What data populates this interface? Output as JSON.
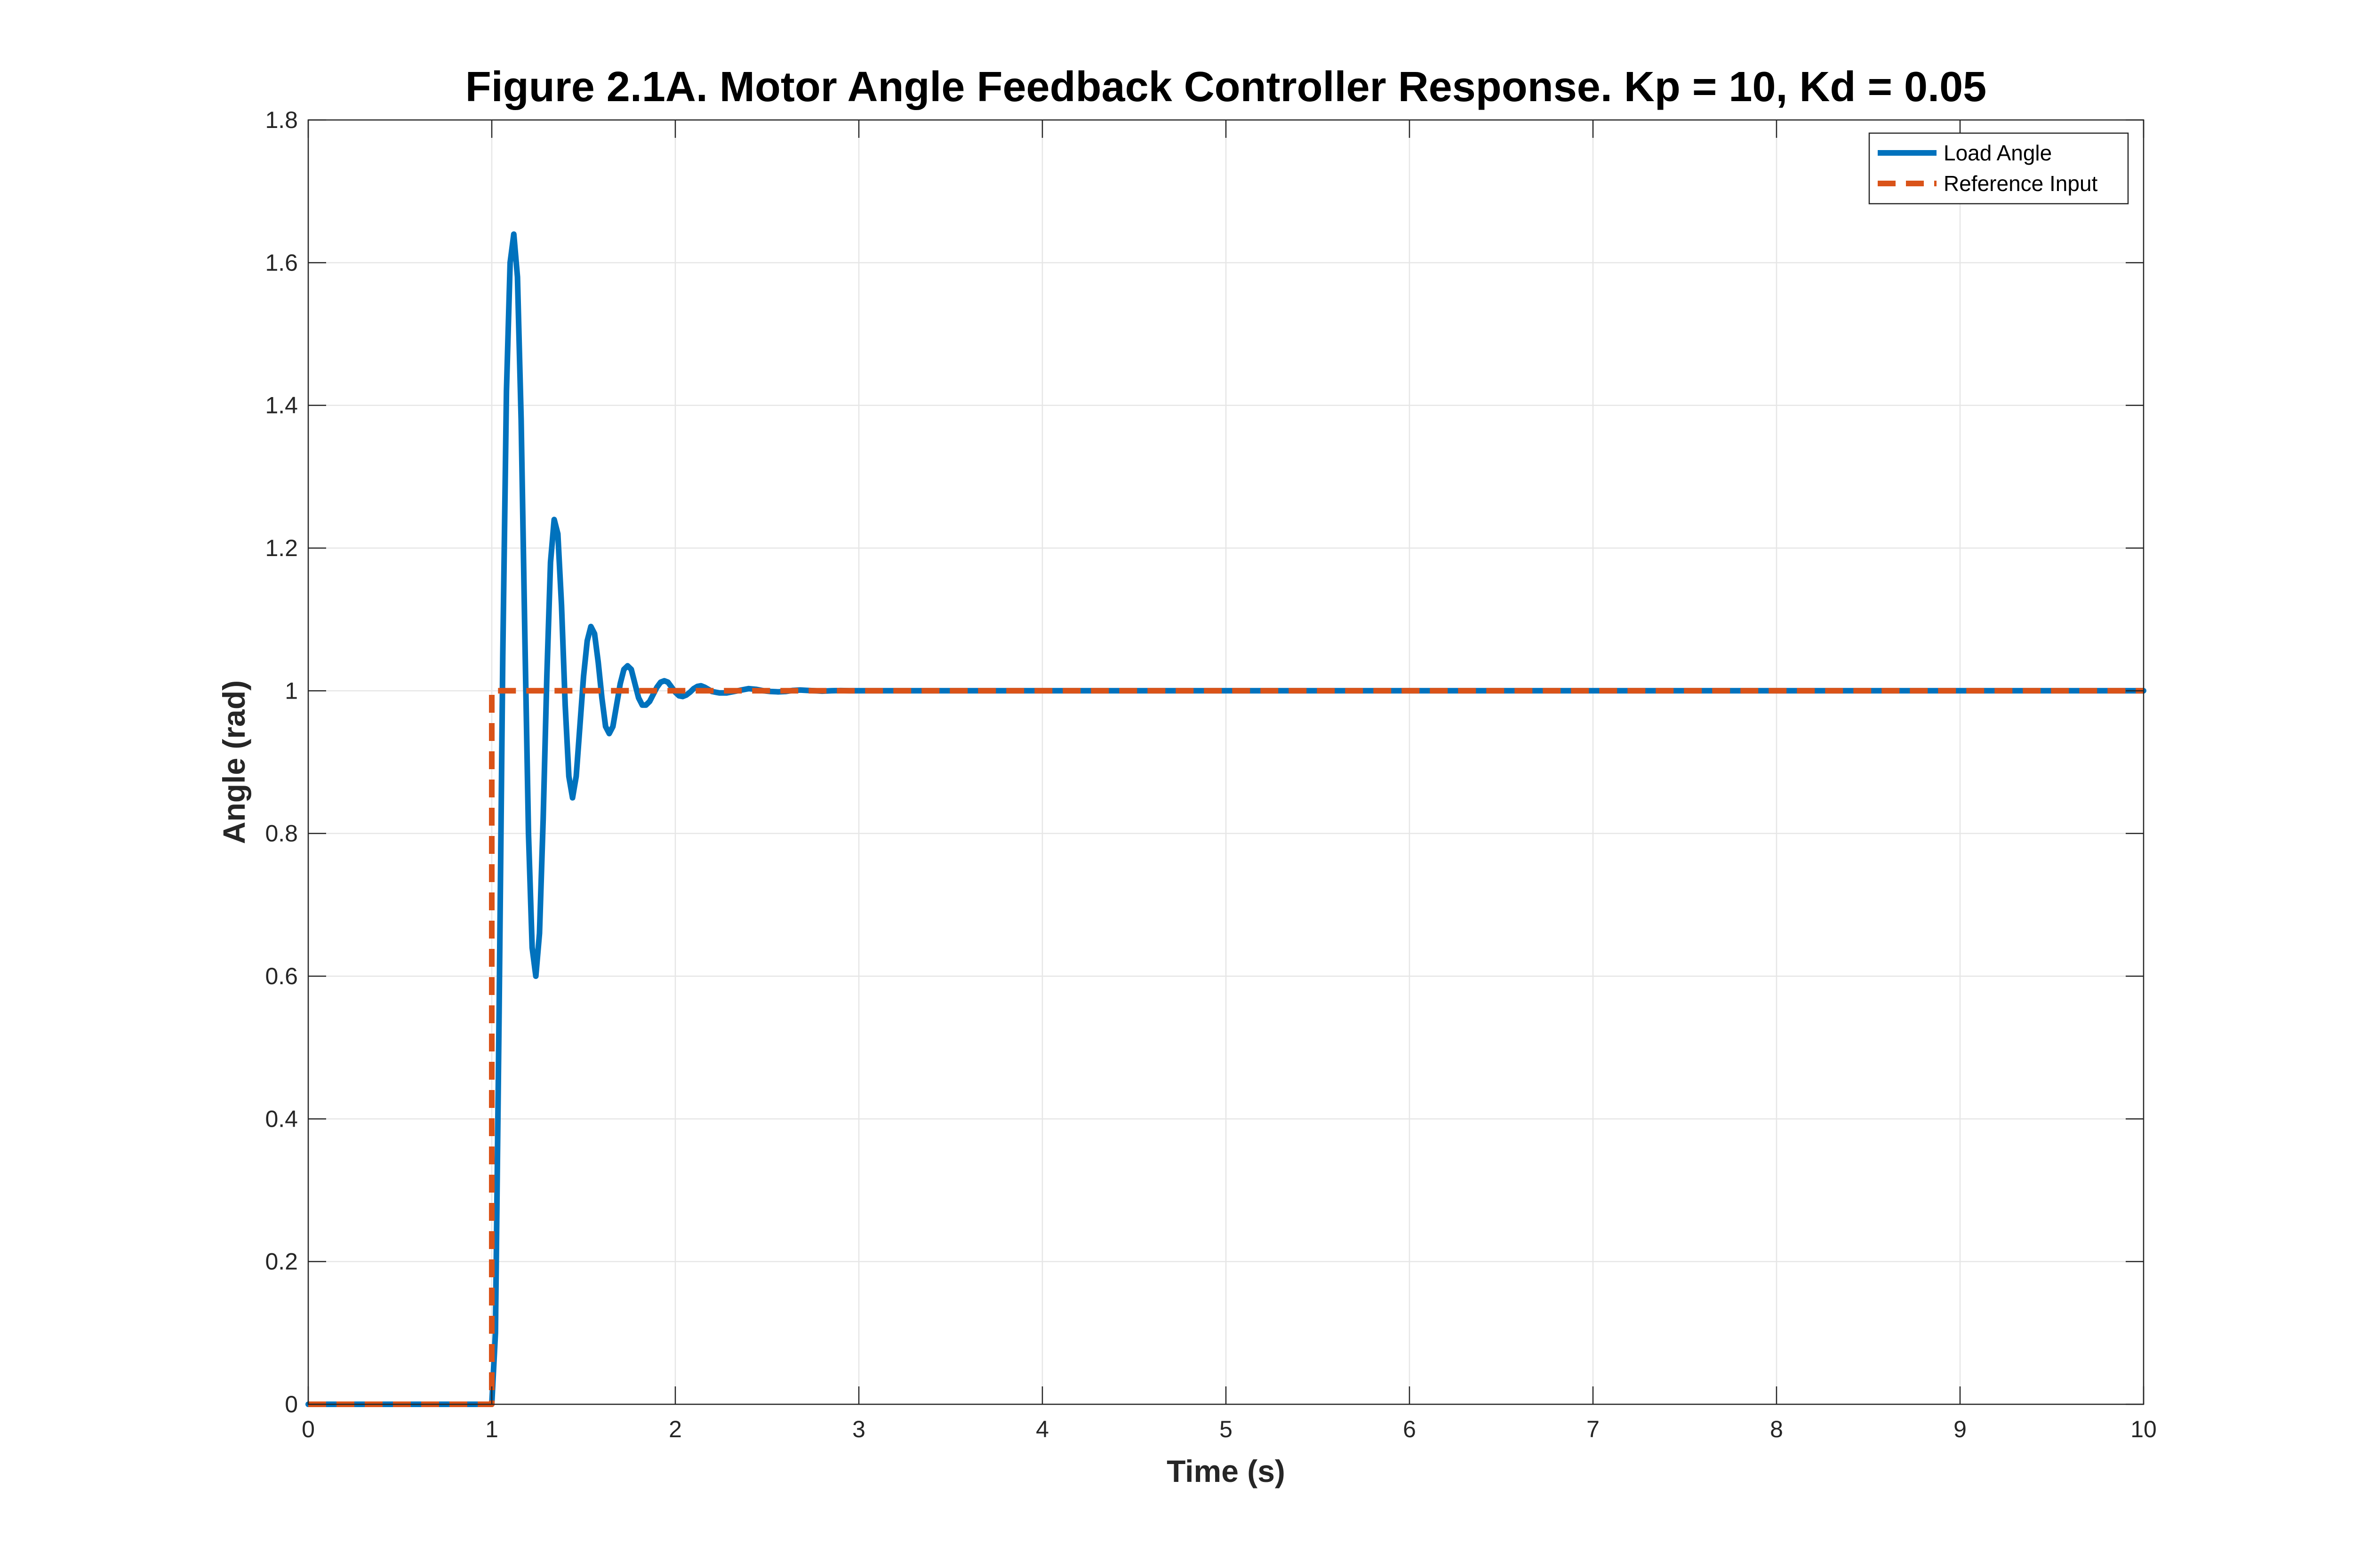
{
  "chart_data": {
    "type": "line",
    "title": "Figure 2.1A. Motor Angle Feedback Controller Response. Kp = 10, Kd = 0.05",
    "xlabel": "Time (s)",
    "ylabel": "Angle (rad)",
    "xlim": [
      0,
      10
    ],
    "ylim": [
      0,
      1.8
    ],
    "xticks": [
      0,
      1,
      2,
      3,
      4,
      5,
      6,
      7,
      8,
      9,
      10
    ],
    "xtick_labels": [
      "0",
      "1",
      "2",
      "3",
      "4",
      "5",
      "6",
      "7",
      "8",
      "9",
      "10"
    ],
    "yticks": [
      0,
      0.2,
      0.4,
      0.6,
      0.8,
      1,
      1.2,
      1.4,
      1.6,
      1.8
    ],
    "ytick_labels": [
      "0",
      "0.2",
      "0.4",
      "0.6",
      "0.8",
      "1",
      "1.2",
      "1.4",
      "1.6",
      "1.8"
    ],
    "grid": true,
    "legend_position": "top-right",
    "series": [
      {
        "name": "Load Angle",
        "color": "#0072BD",
        "style": "solid",
        "x": [
          0,
          1.0,
          1.02,
          1.04,
          1.06,
          1.08,
          1.1,
          1.12,
          1.14,
          1.16,
          1.18,
          1.2,
          1.22,
          1.24,
          1.26,
          1.28,
          1.3,
          1.32,
          1.34,
          1.36,
          1.38,
          1.4,
          1.42,
          1.44,
          1.46,
          1.48,
          1.5,
          1.52,
          1.54,
          1.56,
          1.58,
          1.6,
          1.62,
          1.64,
          1.66,
          1.68,
          1.7,
          1.72,
          1.74,
          1.76,
          1.78,
          1.8,
          1.82,
          1.84,
          1.86,
          1.88,
          1.9,
          1.92,
          1.94,
          1.96,
          1.98,
          2.0,
          2.02,
          2.04,
          2.06,
          2.08,
          2.1,
          2.12,
          2.14,
          2.16,
          2.18,
          2.2,
          2.24,
          2.28,
          2.32,
          2.36,
          2.4,
          2.44,
          2.48,
          2.52,
          2.56,
          2.6,
          2.64,
          2.68,
          2.72,
          2.76,
          2.8,
          2.85,
          2.9,
          2.95,
          3.0,
          3.1,
          3.2,
          3.4,
          3.6,
          4.0,
          5.0,
          10.0
        ],
        "y": [
          0,
          0,
          0.1,
          0.55,
          1.05,
          1.42,
          1.6,
          1.64,
          1.58,
          1.38,
          1.08,
          0.8,
          0.64,
          0.6,
          0.66,
          0.82,
          1.02,
          1.18,
          1.24,
          1.22,
          1.12,
          0.98,
          0.88,
          0.85,
          0.88,
          0.95,
          1.02,
          1.07,
          1.09,
          1.08,
          1.04,
          0.99,
          0.95,
          0.94,
          0.95,
          0.98,
          1.01,
          1.03,
          1.035,
          1.03,
          1.01,
          0.99,
          0.98,
          0.98,
          0.985,
          0.995,
          1.005,
          1.012,
          1.014,
          1.012,
          1.005,
          0.998,
          0.993,
          0.992,
          0.994,
          0.998,
          1.003,
          1.006,
          1.007,
          1.005,
          1.002,
          0.999,
          0.997,
          0.997,
          0.999,
          1.001,
          1.003,
          1.002,
          1.0,
          0.999,
          0.9985,
          0.999,
          1.0005,
          1.001,
          1.0005,
          1.0,
          0.9995,
          1.0,
          1.0003,
          1.0,
          1.0,
          1.0,
          1.0,
          1.0,
          1.0,
          1.0,
          1.0,
          1.0
        ]
      },
      {
        "name": "Reference Input",
        "color": "#D95319",
        "style": "dashed",
        "x": [
          0,
          1.0,
          1.0,
          10.0
        ],
        "y": [
          0,
          0,
          1,
          1
        ]
      }
    ]
  }
}
